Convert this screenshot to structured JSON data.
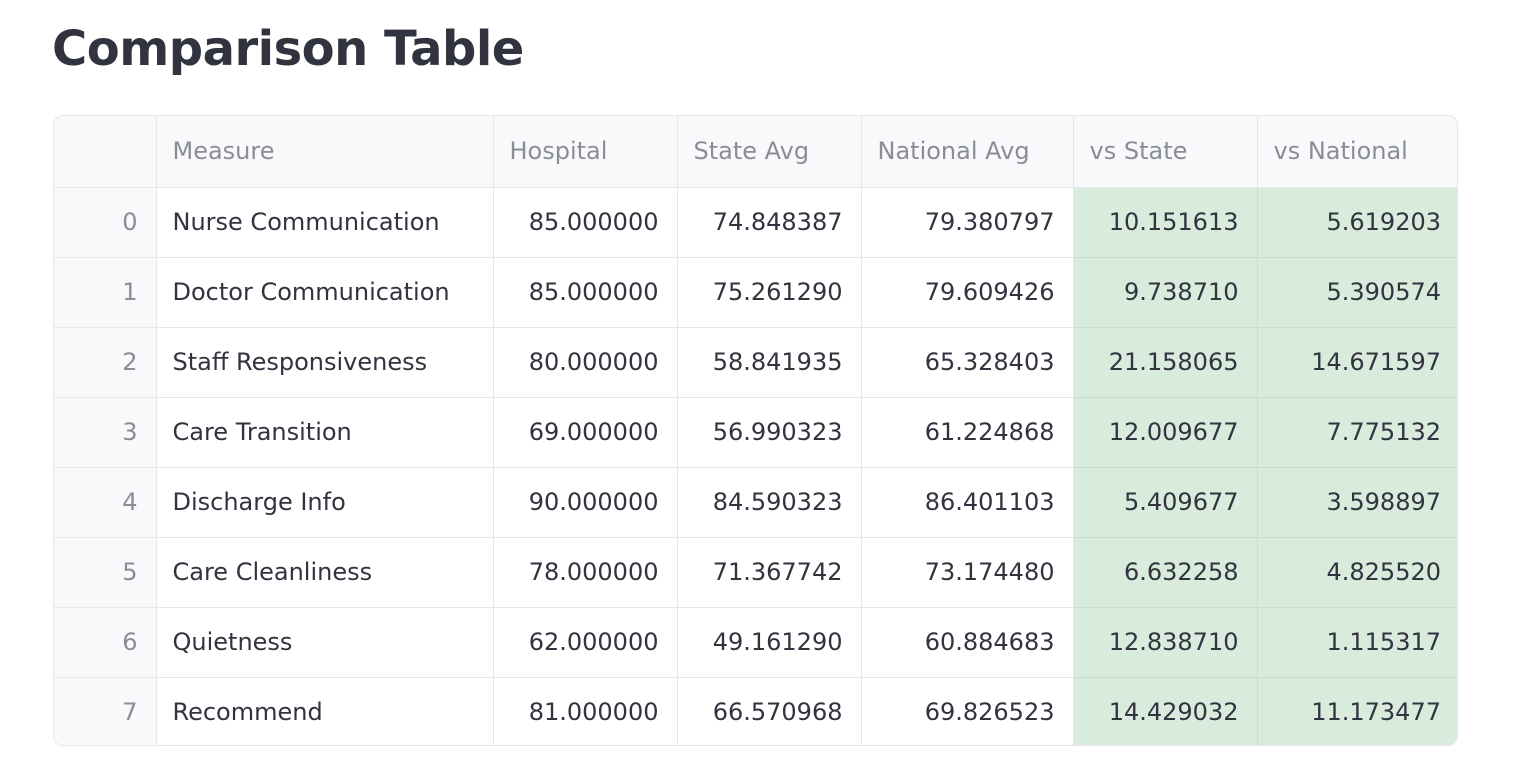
{
  "page": {
    "title": "Comparison Table"
  },
  "table": {
    "columns": [
      "",
      "Measure",
      "Hospital",
      "State Avg",
      "National Avg",
      "vs State",
      "vs National"
    ],
    "rows": [
      [
        "0",
        "Nurse Communication",
        "85.000000",
        "74.848387",
        "79.380797",
        "10.151613",
        "5.619203"
      ],
      [
        "1",
        "Doctor Communication",
        "85.000000",
        "75.261290",
        "79.609426",
        "9.738710",
        "5.390574"
      ],
      [
        "2",
        "Staff Responsiveness",
        "80.000000",
        "58.841935",
        "65.328403",
        "21.158065",
        "14.671597"
      ],
      [
        "3",
        "Care Transition",
        "69.000000",
        "56.990323",
        "61.224868",
        "12.009677",
        "7.775132"
      ],
      [
        "4",
        "Discharge Info",
        "90.000000",
        "84.590323",
        "86.401103",
        "5.409677",
        "3.598897"
      ],
      [
        "5",
        "Care Cleanliness",
        "78.000000",
        "71.367742",
        "73.174480",
        "6.632258",
        "4.825520"
      ],
      [
        "6",
        "Quietness",
        "62.000000",
        "49.161290",
        "60.884683",
        "12.838710",
        "1.115317"
      ],
      [
        "7",
        "Recommend",
        "81.000000",
        "66.570968",
        "69.826523",
        "14.429032",
        "11.173477"
      ]
    ]
  },
  "colors": {
    "highlight": "#d9ebdd",
    "header_bg": "#f8f9fb",
    "text": "#31333f",
    "muted_text": "#8b8d96",
    "border": "#e6e7eb"
  }
}
